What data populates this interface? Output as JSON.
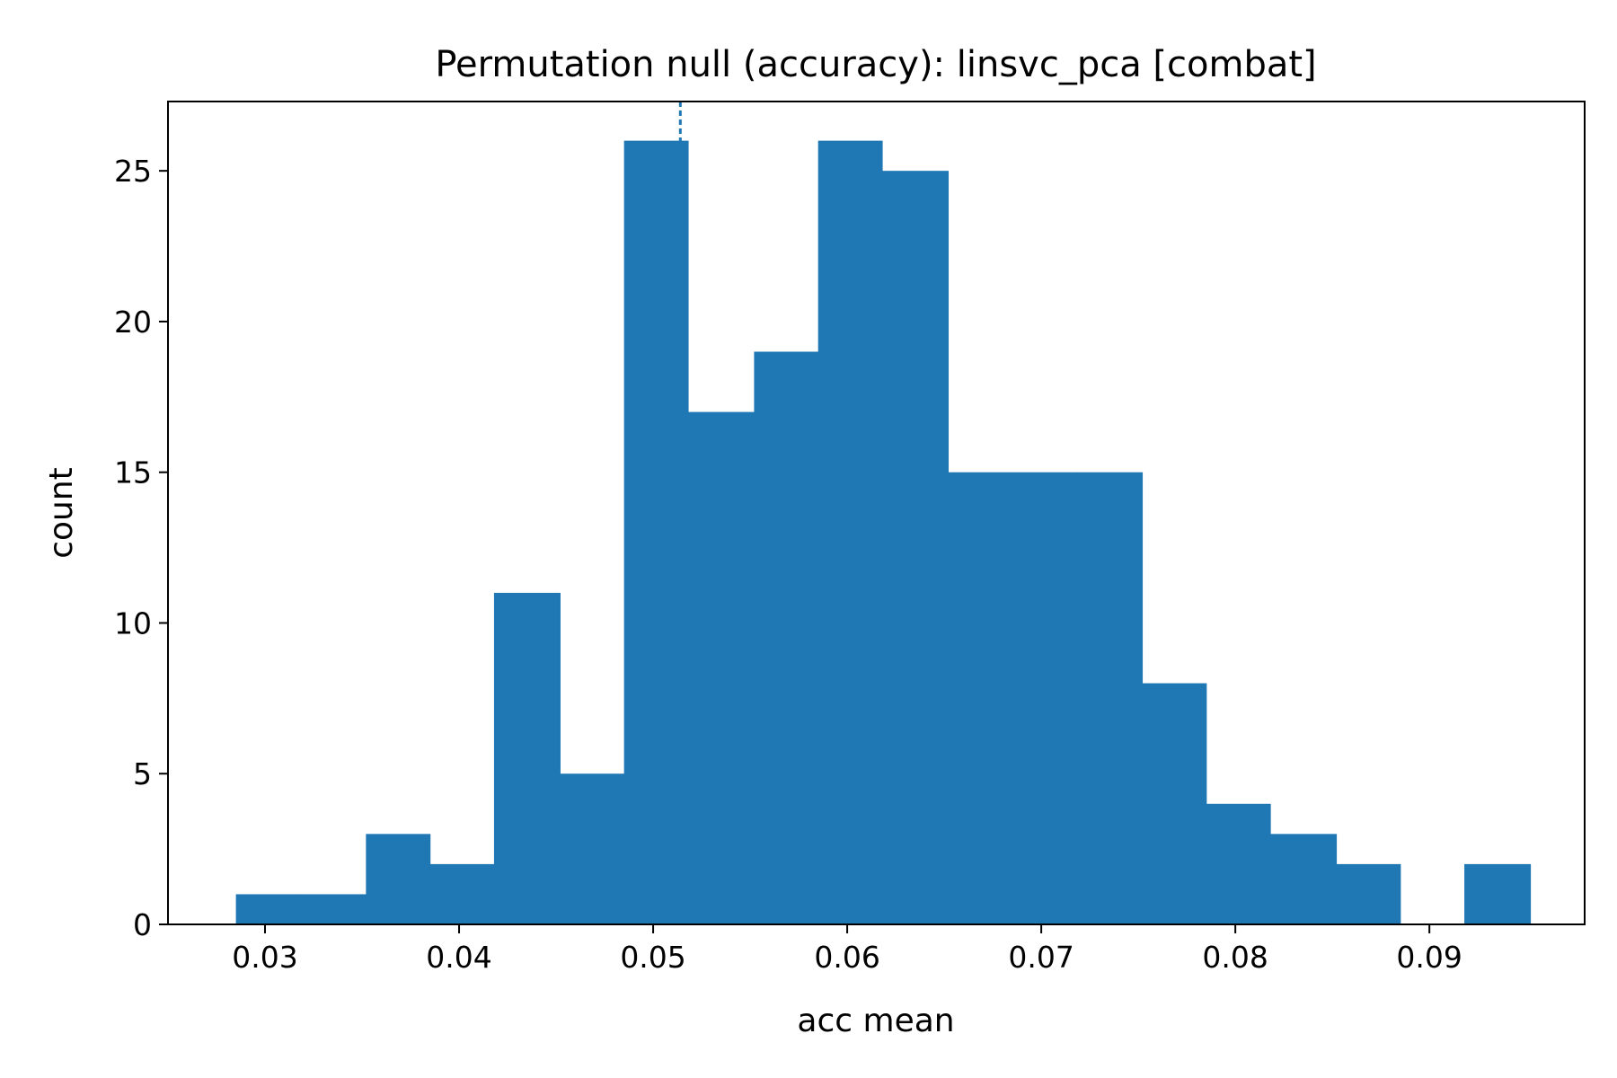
{
  "chart_data": {
    "type": "bar",
    "subtype": "histogram",
    "title": "Permutation null (accuracy): linsvc_pca [combat]",
    "xlabel": "acc mean",
    "ylabel": "count",
    "bar_color": "#1f77b4",
    "ref_line_color": "#1f77b4",
    "xlim": [
      0.025,
      0.098
    ],
    "ylim": [
      0,
      27.3
    ],
    "xticks": [
      0.03,
      0.04,
      0.05,
      0.06,
      0.07,
      0.08,
      0.09
    ],
    "xtick_labels": [
      "0.03",
      "0.04",
      "0.05",
      "0.06",
      "0.07",
      "0.08",
      "0.09"
    ],
    "yticks": [
      0,
      5,
      10,
      15,
      20,
      25
    ],
    "ytick_labels": [
      "0",
      "5",
      "10",
      "15",
      "20",
      "25"
    ],
    "bin_edges": [
      0.0285,
      0.0318,
      0.0352,
      0.0385,
      0.0418,
      0.0452,
      0.0485,
      0.0518,
      0.0552,
      0.0585,
      0.0618,
      0.0652,
      0.0685,
      0.0718,
      0.0752,
      0.0785,
      0.0818,
      0.0852,
      0.0885,
      0.0918,
      0.0952
    ],
    "counts": [
      1,
      1,
      3,
      2,
      11,
      5,
      26,
      17,
      19,
      26,
      25,
      15,
      15,
      15,
      8,
      4,
      3,
      2,
      0,
      2
    ],
    "observed_value": 0.0514,
    "grid": false
  }
}
